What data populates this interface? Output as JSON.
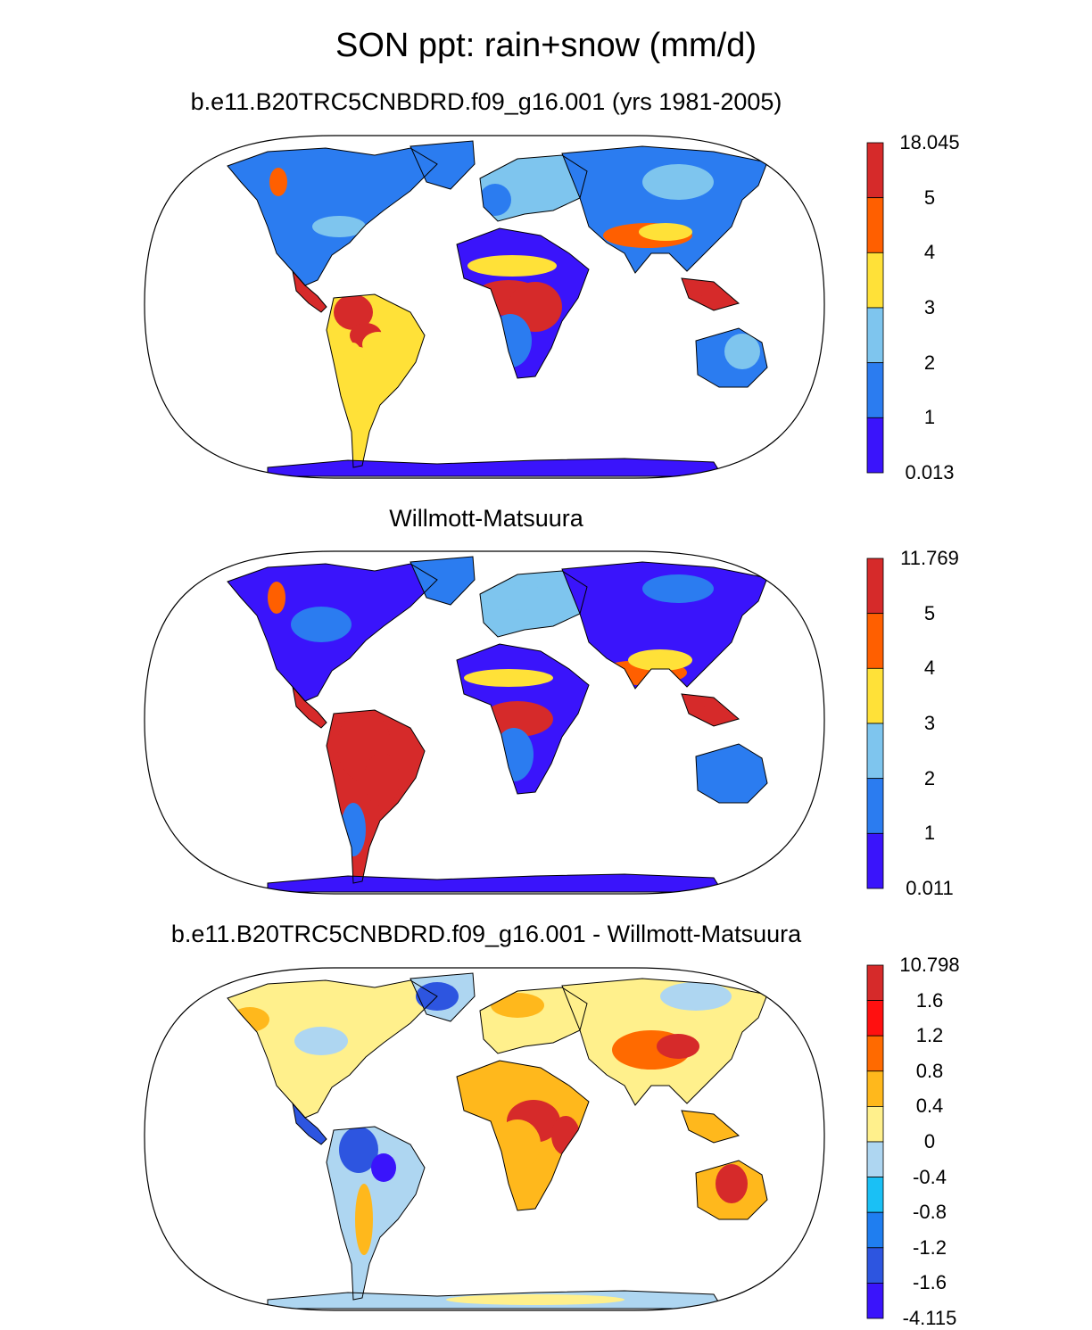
{
  "title": "SON ppt: rain+snow (mm/d)",
  "panels": [
    {
      "title": "b.e11.B20TRC5CNBDRD.f09_g16.001 (yrs 1981-2005)",
      "colorbar": {
        "labels": [
          "18.045",
          "5",
          "4",
          "3",
          "2",
          "1",
          "0.013"
        ],
        "colors": [
          "#d62a2a",
          "#ff5f00",
          "#ffe138",
          "#7ec5ee",
          "#2b7cf0",
          "#3a14fb"
        ]
      }
    },
    {
      "title": "Willmott-Matsuura",
      "colorbar": {
        "labels": [
          "11.769",
          "5",
          "4",
          "3",
          "2",
          "1",
          "0.011"
        ],
        "colors": [
          "#d62a2a",
          "#ff5f00",
          "#ffe138",
          "#7ec5ee",
          "#2b7cf0",
          "#3a14fb"
        ]
      }
    },
    {
      "title": "b.e11.B20TRC5CNBDRD.f09_g16.001 - Willmott-Matsuura",
      "colorbar": {
        "labels": [
          "10.798",
          "1.6",
          "1.2",
          "0.8",
          "0.4",
          "0",
          "-0.4",
          "-0.8",
          "-1.2",
          "-1.6",
          "-4.115"
        ],
        "colors": [
          "#d62a2a",
          "#ff1010",
          "#ff6a00",
          "#ffb81c",
          "#fff08c",
          "#aed6f1",
          "#1ac0f5",
          "#1f7ef0",
          "#2d55e0",
          "#3a14fb"
        ]
      }
    }
  ],
  "map_colors": {
    "panel1": {
      "ocean": "#ffffff",
      "dry": "#3a14fb",
      "low": "#2b7cf0",
      "mid": "#7ec5ee",
      "mod": "#ffe138",
      "wet": "#ff5f00",
      "vwet": "#d62a2a"
    },
    "panel3": {
      "neutral": "#fff08c",
      "pos": "#ffb81c",
      "strong_pos": "#d62a2a",
      "neg": "#aed6f1",
      "strong_neg": "#3a14fb"
    }
  }
}
